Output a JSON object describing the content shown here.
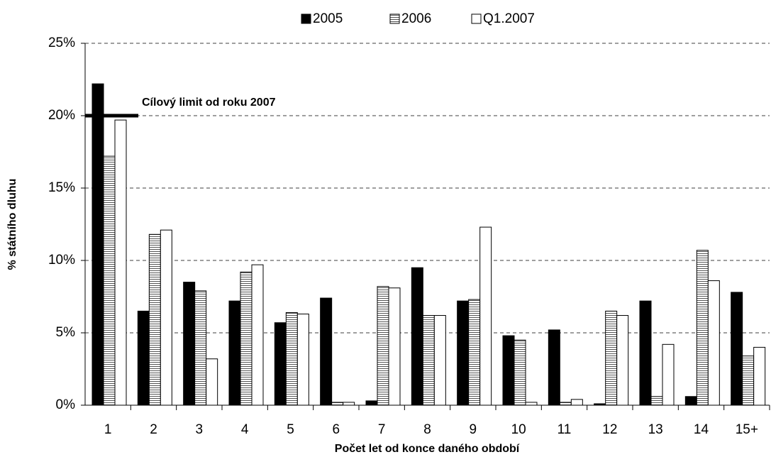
{
  "chart_data": {
    "type": "bar",
    "x_label": "Počet let od konce daného období",
    "y_label": "% státního dluhu",
    "categories": [
      "1",
      "2",
      "3",
      "4",
      "5",
      "6",
      "7",
      "8",
      "9",
      "10",
      "11",
      "12",
      "13",
      "14",
      "15+"
    ],
    "series": [
      {
        "name": "2005",
        "color": "#000000",
        "values": [
          22.2,
          6.5,
          8.5,
          7.2,
          5.7,
          7.4,
          0.3,
          9.5,
          7.2,
          4.8,
          5.2,
          0.1,
          7.2,
          0.6,
          7.8
        ]
      },
      {
        "name": "2006",
        "color": "#ffffff",
        "pattern": "horizontal-lines",
        "values": [
          17.2,
          11.8,
          7.9,
          9.2,
          6.4,
          0.2,
          8.2,
          6.2,
          7.3,
          4.5,
          0.2,
          6.5,
          0.6,
          10.7,
          3.4
        ]
      },
      {
        "name": "Q1.2007",
        "color": "#ffffff",
        "values": [
          19.7,
          12.1,
          3.2,
          9.7,
          6.3,
          0.2,
          8.1,
          6.2,
          12.3,
          0.2,
          0.4,
          6.2,
          4.2,
          8.6,
          4.0
        ]
      }
    ],
    "ylim": [
      0,
      25
    ],
    "yticks": [
      {
        "value": 0,
        "label": "0%"
      },
      {
        "value": 5,
        "label": "5%"
      },
      {
        "value": 10,
        "label": "10%"
      },
      {
        "value": 15,
        "label": "15%"
      },
      {
        "value": 20,
        "label": "20%"
      },
      {
        "value": 25,
        "label": "25%"
      }
    ],
    "grid": true,
    "legend": "top",
    "target": {
      "label": "Cílový limit od roku 2007",
      "value": 20
    }
  }
}
